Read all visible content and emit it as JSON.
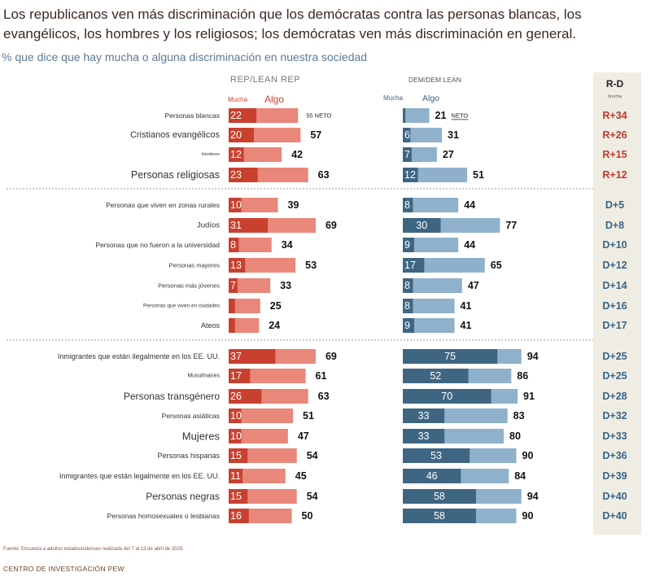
{
  "title": "Los republicanos ven más discriminación que los demócratas contra las personas blancas, los evangélicos, los hombres y los religiosos; los demócratas ven más discriminación en general.",
  "subtitle": "% que dice que hay mucha o alguna discriminación en nuestra sociedad",
  "footer": {
    "source": "Fuente: Encuesta a adultos estadounidenses realizada del 7 al 13 de abril de 2025.",
    "brand": "CENTRO DE INVESTIGACIÓN PEW"
  },
  "colors": {
    "rep_much": "#c9402f",
    "rep_some": "#e8877a",
    "dem_much": "#3e6683",
    "dem_some": "#8fb1cc",
    "gap_rep": "#c0392b",
    "gap_dem": "#3a6487",
    "gap_panel": "#efede3"
  },
  "chart_data": {
    "type": "bar",
    "subtype": "paired-stacked-horizontal",
    "title": "Los republicanos ven más discriminación que los demócratas contra las personas blancas, los evangélicos, los hombres y los religiosos; los demócratas ven más discriminación en general.",
    "subtitle": "% que dice que hay mucha o alguna discriminación en nuestra sociedad",
    "xlim": [
      0,
      100
    ],
    "groups": [
      {
        "label": "REP/LEAN REP",
        "legend_much": "Mucha",
        "legend_some": "Algo",
        "net_label": "55 NETO"
      },
      {
        "label": "DEM/DEM LEAN",
        "legend_much": "Mucha",
        "legend_some": "Algo",
        "net_label": "NETO"
      }
    ],
    "gap_header": "R-D",
    "gap_subheader": "brecha",
    "rows": [
      {
        "label": "Personas blancas",
        "rep_much": 22,
        "rep_net": "",
        "dem_much": "",
        "dem_net": 21,
        "gap": "R+34"
      },
      {
        "label": "Cristianos evangélicos",
        "rep_much": 20,
        "rep_net": 57,
        "dem_much": 6,
        "dem_net": 31,
        "gap": "R+26"
      },
      {
        "label": "Hombres",
        "rep_much": 12,
        "rep_net": 42,
        "dem_much": 7,
        "dem_net": 27,
        "gap": "R+15"
      },
      {
        "label": "Personas religiosas",
        "rep_much": 23,
        "rep_net": 63,
        "dem_much": 12,
        "dem_net": 51,
        "gap": "R+12"
      },
      {
        "label": "Personas que viven en zonas rurales",
        "rep_much": 10,
        "rep_net": 39,
        "dem_much": 8,
        "dem_net": 44,
        "gap": "D+5"
      },
      {
        "label": "Judíos",
        "rep_much": 31,
        "rep_net": 69,
        "dem_much": 30,
        "dem_net": 77,
        "gap": "D+8"
      },
      {
        "label": "Personas que no fueron a la universidad",
        "rep_much": 8,
        "rep_net": 34,
        "dem_much": 9,
        "dem_net": 44,
        "gap": "D+10"
      },
      {
        "label": "Personas mayores",
        "rep_much": 13,
        "rep_net": 53,
        "dem_much": 17,
        "dem_net": 65,
        "gap": "D+12"
      },
      {
        "label": "Personas más jóvenes",
        "rep_much": 7,
        "rep_net": 33,
        "dem_much": 8,
        "dem_net": 47,
        "gap": "D+14"
      },
      {
        "label": "Personas que viven en ciudades",
        "rep_much": "",
        "rep_net": 25,
        "dem_much": 8,
        "dem_net": 41,
        "gap": "D+16"
      },
      {
        "label": "Ateos",
        "rep_much": "",
        "rep_net": 24,
        "dem_much": 9,
        "dem_net": 41,
        "gap": "D+17"
      },
      {
        "label": "Inmigrantes que están ilegalmente en los EE. UU.",
        "rep_much": 37,
        "rep_net": 69,
        "dem_much": 75,
        "dem_net": 94,
        "gap": "D+25"
      },
      {
        "label": "Musulmanes",
        "rep_much": 17,
        "rep_net": 61,
        "dem_much": 52,
        "dem_net": 86,
        "gap": "D+25"
      },
      {
        "label": "Personas transgénero",
        "rep_much": 26,
        "rep_net": 63,
        "dem_much": 70,
        "dem_net": 91,
        "gap": "D+28"
      },
      {
        "label": "Personas asiáticas",
        "rep_much": 10,
        "rep_net": 51,
        "dem_much": 33,
        "dem_net": 83,
        "gap": "D+32"
      },
      {
        "label": "Mujeres",
        "rep_much": 10,
        "rep_net": 47,
        "dem_much": 33,
        "dem_net": 80,
        "gap": "D+33"
      },
      {
        "label": "Personas hispanas",
        "rep_much": 15,
        "rep_net": 54,
        "dem_much": 53,
        "dem_net": 90,
        "gap": "D+36"
      },
      {
        "label": "Inmigrantes que están legalmente en los EE. UU.",
        "rep_much": 11,
        "rep_net": 45,
        "dem_much": 46,
        "dem_net": 84,
        "gap": "D+39"
      },
      {
        "label": "Personas negras",
        "rep_much": 15,
        "rep_net": 54,
        "dem_much": 58,
        "dem_net": 94,
        "gap": "D+40"
      },
      {
        "label": "Personas homosexuales o lesbianas",
        "rep_much": 16,
        "rep_net": 50,
        "dem_much": 58,
        "dem_net": 90,
        "gap": "D+40"
      }
    ]
  }
}
